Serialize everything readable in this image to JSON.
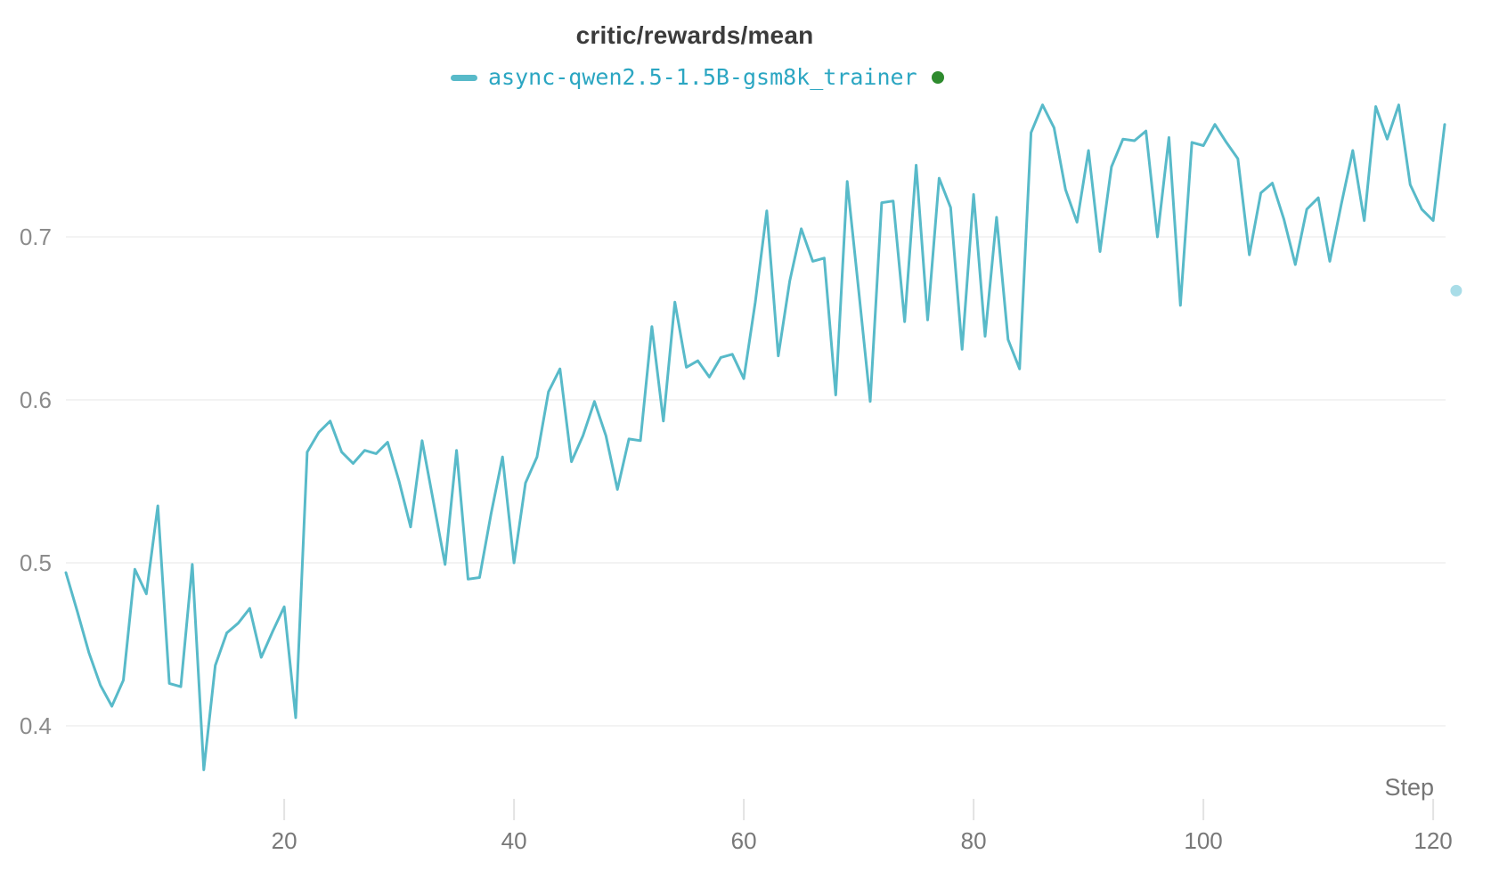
{
  "title": "critic/rewards/mean",
  "legend": {
    "series_label": "async-qwen2.5-1.5B-gsm8k_trainer",
    "swatch_color": "#58bac9",
    "label_color": "#2ba6c2",
    "status_dot_color": "#2e8b2e"
  },
  "axes": {
    "x_title": "Step",
    "x_tick_labels": [
      "20",
      "40",
      "60",
      "80",
      "100",
      "120"
    ],
    "y_tick_labels": [
      "0.4",
      "0.5",
      "0.6",
      "0.7"
    ]
  },
  "colors": {
    "line": "#58bac9",
    "grid": "#ececec",
    "x_tick_mark": "#e3e3e3",
    "y_label_text": "#8b8b8b",
    "x_label_text": "#787878",
    "x_axis_title_text": "#757575",
    "trailing_dot": "#a9dde8",
    "background": "#ffffff"
  },
  "chart_data": {
    "type": "line",
    "title": "critic/rewards/mean",
    "xlabel": "Step",
    "ylabel": "",
    "x_ticks": [
      20,
      40,
      60,
      80,
      100,
      120
    ],
    "y_ticks": [
      0.4,
      0.5,
      0.6,
      0.7
    ],
    "xlim": [
      1,
      123
    ],
    "ylim": [
      0.35,
      0.8
    ],
    "grid": "horizontal-only",
    "legend_position": "top-center",
    "series": [
      {
        "name": "async-qwen2.5-1.5B-gsm8k_trainer",
        "x_start": 1,
        "x_step": 1,
        "values": [
          0.494,
          0.47,
          0.445,
          0.425,
          0.412,
          0.428,
          0.496,
          0.481,
          0.535,
          0.426,
          0.424,
          0.499,
          0.373,
          0.437,
          0.457,
          0.463,
          0.472,
          0.442,
          0.458,
          0.473,
          0.405,
          0.568,
          0.58,
          0.587,
          0.568,
          0.561,
          0.569,
          0.567,
          0.574,
          0.55,
          0.522,
          0.575,
          0.537,
          0.499,
          0.569,
          0.49,
          0.491,
          0.53,
          0.565,
          0.5,
          0.549,
          0.565,
          0.605,
          0.619,
          0.562,
          0.578,
          0.599,
          0.578,
          0.545,
          0.576,
          0.575,
          0.645,
          0.587,
          0.66,
          0.62,
          0.624,
          0.614,
          0.626,
          0.628,
          0.613,
          0.66,
          0.716,
          0.627,
          0.673,
          0.705,
          0.685,
          0.687,
          0.603,
          0.734,
          0.667,
          0.599,
          0.721,
          0.722,
          0.648,
          0.744,
          0.649,
          0.736,
          0.718,
          0.631,
          0.726,
          0.639,
          0.712,
          0.637,
          0.619,
          0.764,
          0.781,
          0.767,
          0.729,
          0.709,
          0.753,
          0.691,
          0.743,
          0.76,
          0.759,
          0.765,
          0.7,
          0.761,
          0.658,
          0.758,
          0.756,
          0.769,
          0.758,
          0.748,
          0.689,
          0.727,
          0.733,
          0.711,
          0.683,
          0.717,
          0.724,
          0.685,
          0.72,
          0.753,
          0.71,
          0.78,
          0.76,
          0.781,
          0.732,
          0.717,
          0.71,
          0.769
        ]
      }
    ],
    "trailing_point": {
      "x": 122,
      "y": 0.667
    }
  }
}
